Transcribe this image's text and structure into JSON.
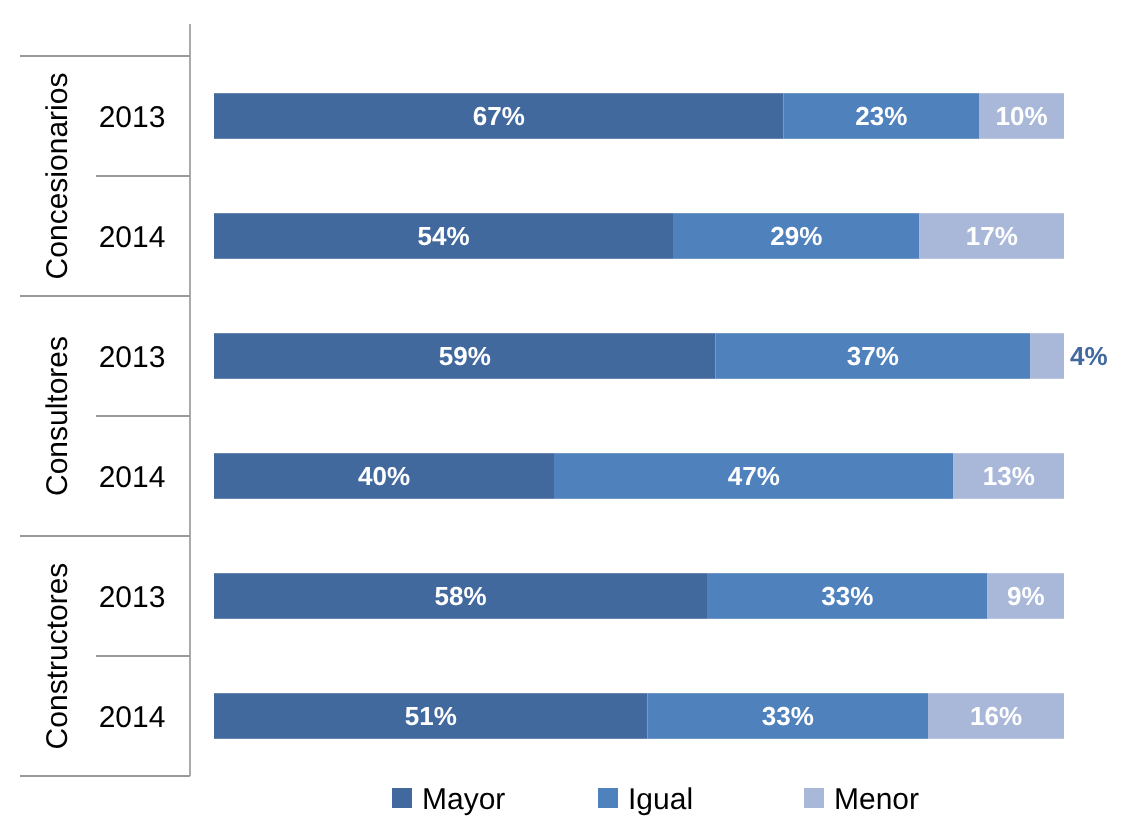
{
  "chart_data": {
    "type": "bar",
    "orientation": "horizontal",
    "stacked": true,
    "categories": [
      "2013",
      "2014",
      "2013",
      "2014",
      "2013",
      "2014"
    ],
    "annotations": [
      "Concesionarios",
      "Consultores",
      "Constructores"
    ],
    "xlim": [
      0,
      100
    ],
    "tick_labels": "y",
    "legend": "bottom",
    "series": [
      {
        "name": "Mayor",
        "color": "#41699e",
        "values": [
          67,
          54,
          59,
          40,
          58,
          51
        ],
        "value_labels": [
          "67%",
          "54%",
          "59%",
          "40%",
          "58%",
          "51%"
        ]
      },
      {
        "name": "Igual",
        "color": "#4f81bd",
        "values": [
          23,
          29,
          37,
          47,
          33,
          33
        ],
        "value_labels": [
          "23%",
          "29%",
          "37%",
          "47%",
          "33%",
          "33%"
        ]
      },
      {
        "name": "Menor",
        "color": "#a9b8d9",
        "values": [
          10,
          17,
          4,
          13,
          9,
          16
        ],
        "value_labels": [
          "10%",
          "17%",
          "4%",
          "13%",
          "9%",
          "16%"
        ]
      }
    ]
  }
}
